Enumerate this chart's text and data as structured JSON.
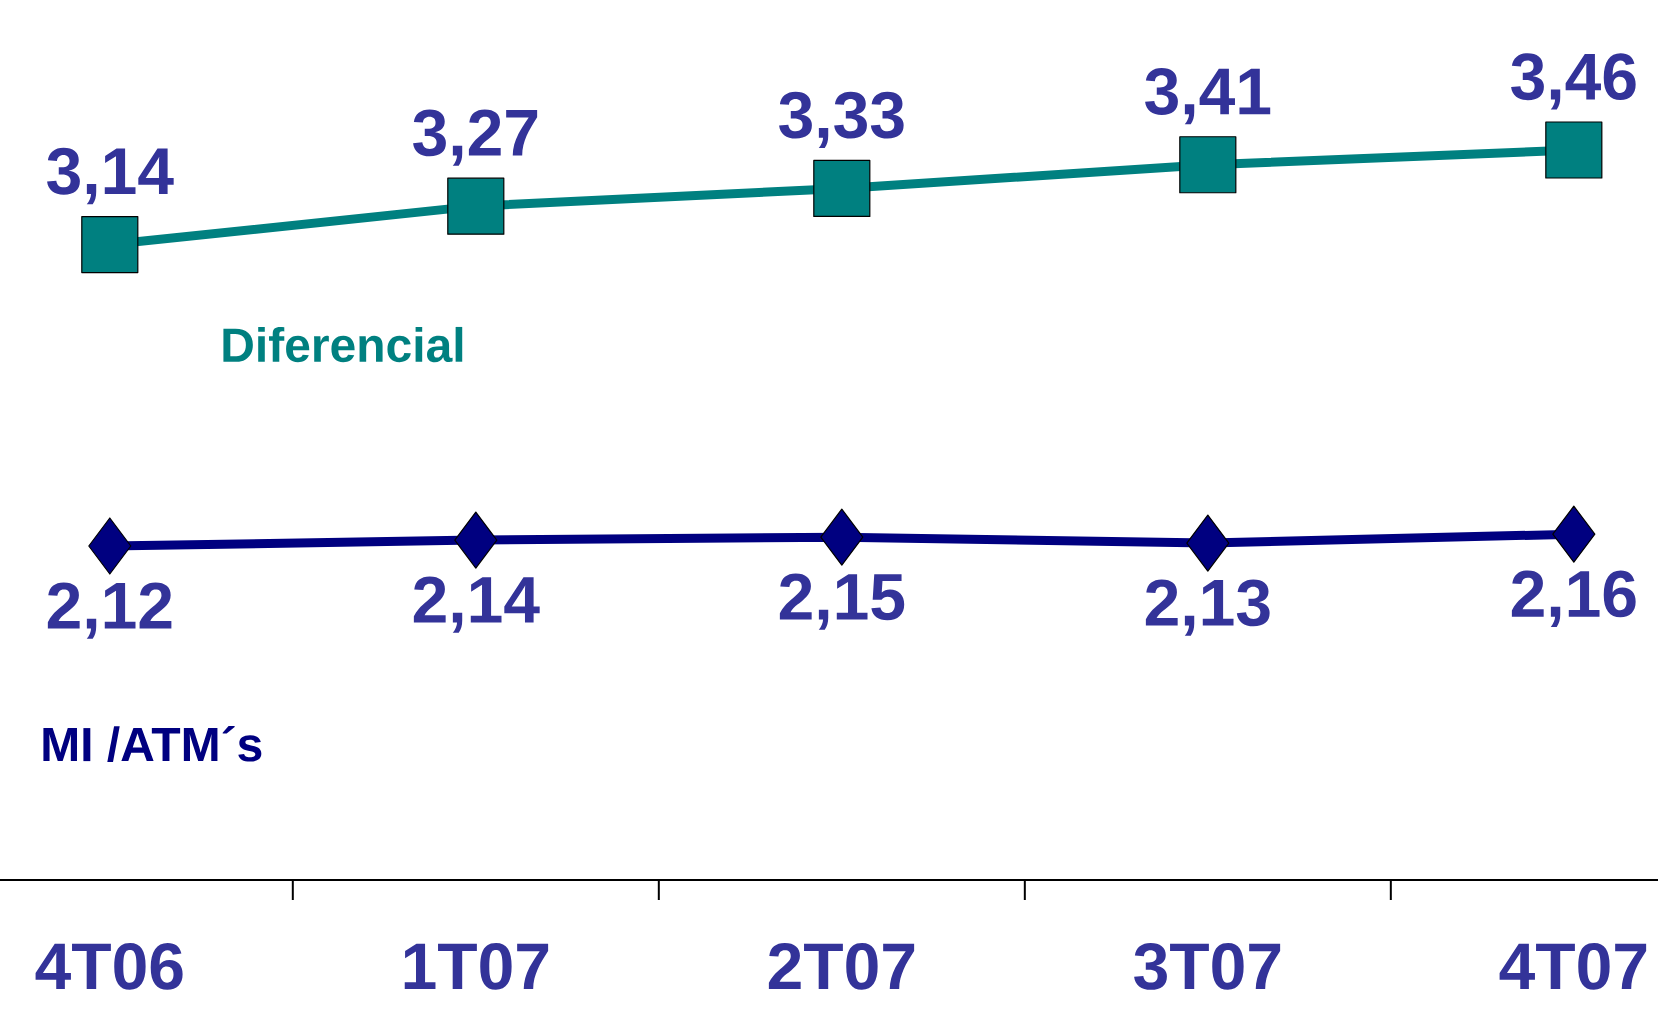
{
  "chart_data": {
    "type": "line",
    "categories": [
      "4T06",
      "1T07",
      "2T07",
      "3T07",
      "4T07"
    ],
    "series": [
      {
        "name": "Diferencial",
        "color": "#008080",
        "marker": "square",
        "values": [
          3.14,
          3.27,
          3.33,
          3.41,
          3.46
        ],
        "value_labels": [
          "3,14",
          "3,27",
          "3,33",
          "3,41",
          "3,46"
        ]
      },
      {
        "name": "MI /ATM´s",
        "color": "#000080",
        "marker": "diamond",
        "values": [
          2.12,
          2.14,
          2.15,
          2.13,
          2.16
        ],
        "value_labels": [
          "2,12",
          "2,14",
          "2,15",
          "2,13",
          "2,16"
        ]
      }
    ],
    "tick_labels": "x"
  }
}
